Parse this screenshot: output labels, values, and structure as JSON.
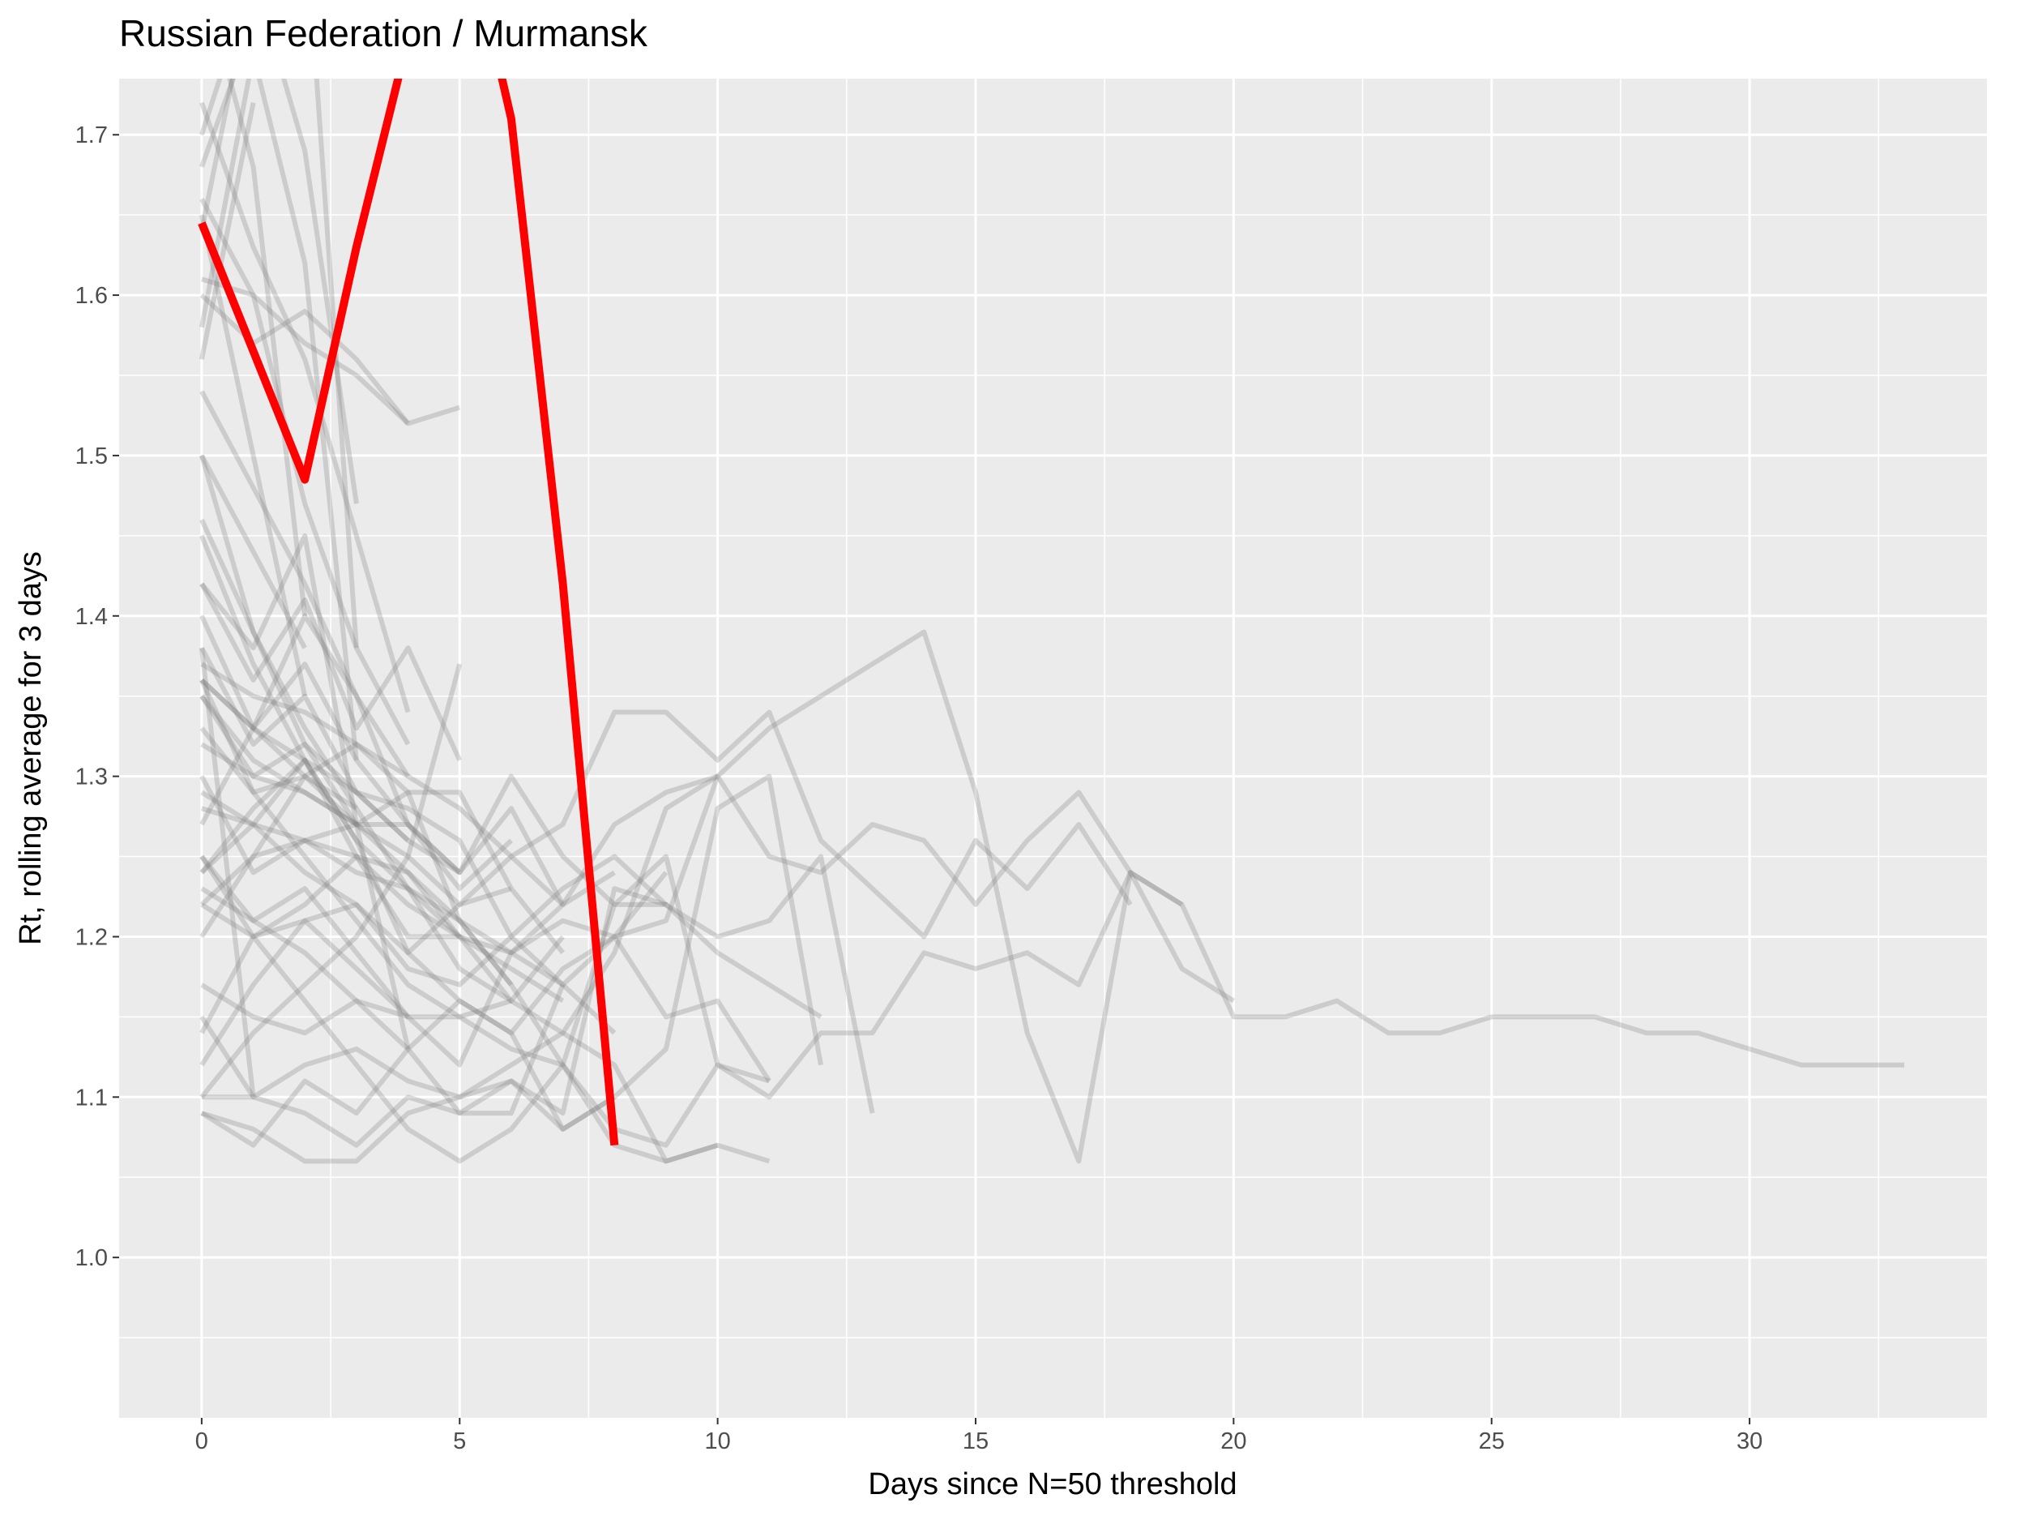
{
  "chart_data": {
    "type": "line",
    "title": "Russian Federation / Murmansk",
    "xlabel": "Days since N=50 threshold",
    "ylabel": "Rt, rolling average for 3 days",
    "xlim": [
      -1.6,
      34.6
    ],
    "ylim": [
      0.9,
      1.735
    ],
    "x_ticks": [
      0,
      5,
      10,
      15,
      20,
      25,
      30
    ],
    "x_tick_labels": [
      "0",
      "5",
      "10",
      "15",
      "20",
      "25",
      "30"
    ],
    "y_ticks": [
      1.0,
      1.1,
      1.2,
      1.3,
      1.4,
      1.5,
      1.6,
      1.7
    ],
    "y_tick_labels": [
      "1.0",
      "1.1",
      "1.2",
      "1.3",
      "1.4",
      "1.5",
      "1.6",
      "1.7"
    ],
    "grid": true,
    "colors": {
      "panel": "#ebebeb",
      "grid": "#ffffff",
      "highlight": "#ff0000",
      "background_series": "#7f7f7f"
    },
    "highlight": {
      "x": [
        0,
        1,
        2,
        3,
        4,
        5,
        6,
        7,
        8
      ],
      "y": [
        1.645,
        1.565,
        1.485,
        1.63,
        1.76,
        1.85,
        1.71,
        1.42,
        1.07
      ]
    },
    "background_series": [
      {
        "x": [
          0,
          1,
          2,
          3,
          4,
          5,
          6,
          7,
          8,
          9,
          10,
          11,
          12,
          13,
          14,
          15,
          16,
          17,
          18,
          19,
          20,
          21,
          22,
          23,
          24,
          25,
          26,
          27,
          28,
          29,
          30,
          31,
          32,
          33
        ],
        "y": [
          1.24,
          1.27,
          1.26,
          1.25,
          1.22,
          1.2,
          1.19,
          1.21,
          1.2,
          1.21,
          1.3,
          1.33,
          1.35,
          1.37,
          1.39,
          1.29,
          1.14,
          1.06,
          1.24,
          1.22,
          1.15,
          1.15,
          1.16,
          1.14,
          1.14,
          1.15,
          1.15,
          1.15,
          1.14,
          1.14,
          1.13,
          1.12,
          1.12,
          1.12
        ]
      },
      {
        "x": [
          0,
          1,
          2,
          3,
          4,
          5,
          6,
          7,
          8,
          9,
          10,
          11,
          12,
          13,
          14,
          15,
          16,
          17,
          18,
          19,
          20
        ],
        "y": [
          1.22,
          1.2,
          1.22,
          1.25,
          1.24,
          1.2,
          1.16,
          1.14,
          1.19,
          1.28,
          1.3,
          1.25,
          1.24,
          1.27,
          1.26,
          1.22,
          1.26,
          1.29,
          1.24,
          1.18,
          1.16
        ]
      },
      {
        "x": [
          0,
          1,
          2,
          3,
          4,
          5,
          6,
          7,
          8,
          9,
          10,
          11,
          12,
          13,
          14,
          15,
          16,
          17,
          18,
          19
        ],
        "y": [
          1.29,
          1.27,
          1.31,
          1.26,
          1.23,
          1.21,
          1.17,
          1.12,
          1.08,
          1.07,
          1.12,
          1.1,
          1.14,
          1.14,
          1.19,
          1.18,
          1.19,
          1.17,
          1.24,
          1.22
        ]
      },
      {
        "x": [
          0,
          1,
          2,
          3,
          4,
          5,
          6,
          7,
          8,
          9,
          10,
          11,
          12,
          13,
          14,
          15,
          16,
          17,
          18
        ],
        "y": [
          1.35,
          1.3,
          1.29,
          1.27,
          1.25,
          1.22,
          1.25,
          1.27,
          1.34,
          1.34,
          1.31,
          1.34,
          1.26,
          1.23,
          1.2,
          1.26,
          1.23,
          1.27,
          1.22
        ]
      },
      {
        "x": [
          0,
          1,
          2,
          3,
          4,
          5,
          6,
          7,
          8,
          9,
          10,
          11,
          12,
          13
        ],
        "y": [
          1.4,
          1.33,
          1.37,
          1.31,
          1.27,
          1.24,
          1.3,
          1.25,
          1.22,
          1.22,
          1.2,
          1.21,
          1.25,
          1.09
        ]
      },
      {
        "x": [
          0,
          1,
          2,
          3,
          4,
          5,
          6,
          7,
          8,
          9,
          10,
          11,
          12
        ],
        "y": [
          1.1,
          1.1,
          1.12,
          1.13,
          1.11,
          1.1,
          1.11,
          1.09,
          1.23,
          1.22,
          1.19,
          1.17,
          1.15
        ]
      },
      {
        "x": [
          0,
          1,
          2,
          3,
          4,
          5,
          6,
          7,
          8,
          9,
          10,
          11,
          12
        ],
        "y": [
          1.17,
          1.15,
          1.14,
          1.16,
          1.13,
          1.09,
          1.11,
          1.08,
          1.1,
          1.13,
          1.28,
          1.3,
          1.12
        ]
      },
      {
        "x": [
          0,
          1,
          2,
          3,
          4,
          5,
          6,
          7,
          8,
          9,
          10,
          11
        ],
        "y": [
          1.23,
          1.21,
          1.19,
          1.16,
          1.15,
          1.15,
          1.13,
          1.12,
          1.22,
          1.25,
          1.12,
          1.11
        ]
      },
      {
        "x": [
          0,
          1,
          2,
          3,
          4,
          5,
          6,
          7,
          8,
          9,
          10,
          11
        ],
        "y": [
          1.09,
          1.08,
          1.06,
          1.06,
          1.09,
          1.1,
          1.12,
          1.14,
          1.12,
          1.06,
          1.07,
          1.06
        ]
      },
      {
        "x": [
          0,
          1,
          2,
          3,
          4,
          5,
          6,
          7,
          8,
          9,
          10,
          11
        ],
        "y": [
          1.32,
          1.3,
          1.32,
          1.29,
          1.28,
          1.26,
          1.2,
          1.17,
          1.2,
          1.15,
          1.16,
          1.11
        ]
      },
      {
        "x": [
          0,
          1,
          2,
          3,
          4,
          5,
          6,
          7,
          8,
          9,
          10
        ],
        "y": [
          1.36,
          1.33,
          1.3,
          1.27,
          1.24,
          1.21,
          1.19,
          1.22,
          1.27,
          1.29,
          1.3
        ]
      },
      {
        "x": [
          0,
          1,
          2,
          3,
          4,
          5,
          6,
          7,
          8,
          9,
          10
        ],
        "y": [
          1.14,
          1.2,
          1.16,
          1.12,
          1.08,
          1.06,
          1.08,
          1.12,
          1.07,
          1.06,
          1.07
        ]
      },
      {
        "x": [
          0,
          1,
          2,
          3,
          4,
          5,
          6,
          7,
          8,
          9
        ],
        "y": [
          1.28,
          1.27,
          1.24,
          1.22,
          1.18,
          1.17,
          1.2,
          1.23,
          1.25,
          1.22
        ]
      },
      {
        "x": [
          0,
          1,
          2,
          3,
          4,
          5,
          6,
          7,
          8,
          9
        ],
        "y": [
          1.45,
          1.37,
          1.31,
          1.26,
          1.19,
          1.16,
          1.14,
          1.18,
          1.2,
          1.24
        ]
      },
      {
        "x": [
          0,
          1,
          2,
          3,
          4,
          5,
          6,
          7,
          8
        ],
        "y": [
          1.38,
          1.32,
          1.35,
          1.29,
          1.26,
          1.24,
          1.28,
          1.22,
          1.24
        ]
      },
      {
        "x": [
          0,
          1,
          2,
          3,
          4,
          5,
          6,
          7,
          8
        ],
        "y": [
          1.25,
          1.21,
          1.23,
          1.19,
          1.15,
          1.12,
          1.19,
          1.17,
          1.14
        ]
      },
      {
        "x": [
          0,
          1,
          2,
          3,
          4,
          5,
          6,
          7,
          8
        ],
        "y": [
          1.09,
          1.07,
          1.11,
          1.09,
          1.13,
          1.16,
          1.14,
          1.08,
          1.1
        ]
      },
      {
        "x": [
          0,
          1,
          2,
          3,
          4,
          5,
          6,
          7
        ],
        "y": [
          1.2,
          1.25,
          1.26,
          1.27,
          1.29,
          1.29,
          1.23,
          1.19
        ]
      },
      {
        "x": [
          0,
          1,
          2,
          3,
          4,
          5,
          6,
          7
        ],
        "y": [
          1.33,
          1.29,
          1.3,
          1.32,
          1.3,
          1.28,
          1.25,
          1.22
        ]
      },
      {
        "x": [
          0,
          1,
          2,
          3,
          4,
          5,
          6,
          7
        ],
        "y": [
          1.15,
          1.1,
          1.09,
          1.07,
          1.1,
          1.09,
          1.09,
          1.17
        ]
      },
      {
        "x": [
          0,
          1,
          2,
          3,
          4,
          5,
          6,
          7
        ],
        "y": [
          1.46,
          1.39,
          1.33,
          1.28,
          1.23,
          1.18,
          1.16,
          1.2
        ]
      },
      {
        "x": [
          0,
          1,
          2,
          3,
          4,
          5,
          6,
          7
        ],
        "y": [
          1.24,
          1.28,
          1.31,
          1.25,
          1.2,
          1.2,
          1.18,
          1.16
        ]
      },
      {
        "x": [
          0,
          1,
          2,
          3,
          4,
          5,
          6
        ],
        "y": [
          1.37,
          1.35,
          1.34,
          1.32,
          1.29,
          1.21,
          1.17
        ]
      },
      {
        "x": [
          0,
          1,
          2,
          3,
          4,
          5,
          6
        ],
        "y": [
          1.12,
          1.17,
          1.21,
          1.22,
          1.19,
          1.22,
          1.23
        ]
      },
      {
        "x": [
          0,
          1,
          2,
          3,
          4,
          5,
          6
        ],
        "y": [
          1.27,
          1.33,
          1.4,
          1.35,
          1.27,
          1.23,
          1.26
        ]
      },
      {
        "x": [
          0,
          1,
          2,
          3,
          4,
          5,
          6
        ],
        "y": [
          1.36,
          1.29,
          1.25,
          1.21,
          1.17,
          1.15,
          1.16
        ]
      },
      {
        "x": [
          0,
          1,
          2,
          3,
          4,
          5
        ],
        "y": [
          1.6,
          1.57,
          1.59,
          1.56,
          1.52,
          1.53
        ]
      },
      {
        "x": [
          0,
          1,
          2,
          3,
          4,
          5
        ],
        "y": [
          1.42,
          1.36,
          1.41,
          1.33,
          1.38,
          1.31
        ]
      },
      {
        "x": [
          0,
          1,
          2,
          3,
          4,
          5
        ],
        "y": [
          1.1,
          1.14,
          1.17,
          1.2,
          1.25,
          1.37
        ]
      },
      {
        "x": [
          0,
          1,
          2,
          3,
          4,
          5
        ],
        "y": [
          1.35,
          1.31,
          1.29,
          1.27,
          1.27,
          1.24
        ]
      },
      {
        "x": [
          0,
          1,
          2,
          3,
          4,
          5
        ],
        "y": [
          1.3,
          1.24,
          1.26,
          1.24,
          1.23,
          1.2
        ]
      },
      {
        "x": [
          0,
          1,
          2,
          3,
          4
        ],
        "y": [
          1.61,
          1.6,
          1.57,
          1.55,
          1.52
        ]
      },
      {
        "x": [
          0,
          1,
          2,
          3,
          4
        ],
        "y": [
          1.72,
          1.63,
          1.56,
          1.45,
          1.34
        ]
      },
      {
        "x": [
          0,
          1,
          2,
          3,
          4
        ],
        "y": [
          1.66,
          1.6,
          1.47,
          1.38,
          1.32
        ]
      },
      {
        "x": [
          0,
          1,
          2,
          3,
          4
        ],
        "y": [
          1.5,
          1.39,
          1.32,
          1.27,
          1.13
        ]
      },
      {
        "x": [
          0,
          1,
          2,
          3,
          4
        ],
        "y": [
          1.36,
          1.33,
          1.31,
          1.29,
          1.26
        ]
      },
      {
        "x": [
          0,
          1,
          2,
          3,
          4
        ],
        "y": [
          1.25,
          1.2,
          1.21,
          1.18,
          1.15
        ]
      },
      {
        "x": [
          0,
          1,
          2,
          3,
          4
        ],
        "y": [
          1.54,
          1.48,
          1.42,
          1.35,
          1.3
        ]
      },
      {
        "x": [
          0,
          1,
          2,
          3
        ],
        "y": [
          1.7,
          1.8,
          1.69,
          1.47
        ]
      },
      {
        "x": [
          0,
          1,
          2,
          3
        ],
        "y": [
          1.68,
          1.77,
          1.84,
          1.38
        ]
      },
      {
        "x": [
          0,
          1,
          2,
          3
        ],
        "y": [
          1.58,
          1.75,
          1.62,
          1.31
        ]
      },
      {
        "x": [
          0,
          1,
          2,
          3
        ],
        "y": [
          1.42,
          1.38,
          1.45,
          1.27
        ]
      },
      {
        "x": [
          0,
          1,
          2,
          3
        ],
        "y": [
          1.22,
          1.25,
          1.3,
          1.28
        ]
      },
      {
        "x": [
          0,
          1,
          2
        ],
        "y": [
          1.8,
          1.68,
          1.4
        ]
      },
      {
        "x": [
          0,
          1,
          2
        ],
        "y": [
          1.65,
          1.5,
          1.35
        ]
      },
      {
        "x": [
          0,
          1,
          2
        ],
        "y": [
          1.5,
          1.44,
          1.38
        ]
      },
      {
        "x": [
          0,
          1
        ],
        "y": [
          1.64,
          1.8
        ]
      },
      {
        "x": [
          0,
          1
        ],
        "y": [
          1.56,
          1.72
        ]
      },
      {
        "x": [
          0,
          1
        ],
        "y": [
          1.38,
          1.1
        ]
      }
    ]
  }
}
